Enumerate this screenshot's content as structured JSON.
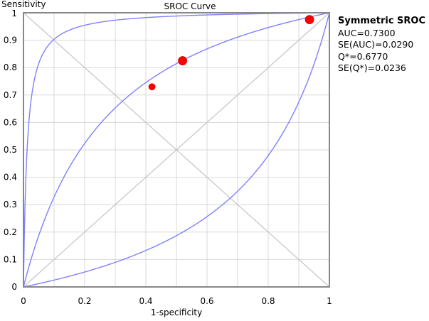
{
  "chart_data": {
    "type": "line",
    "title": "SROC Curve",
    "xlabel": "1-specificity",
    "ylabel": "Sensitivity",
    "xlim": [
      0,
      1
    ],
    "ylim": [
      0,
      1
    ],
    "grid": true,
    "x_ticks": [
      "0",
      "0.2",
      "0.4",
      "0.6",
      "0.8",
      "1"
    ],
    "y_ticks": [
      "0",
      "0.1",
      "0.2",
      "0.3",
      "0.4",
      "0.5",
      "0.6",
      "0.7",
      "0.8",
      "0.9",
      "1"
    ],
    "series": [
      {
        "name": "SROC fitted",
        "model": "logit(TPR)=a+logit(FPR)",
        "a": 1.48
      },
      {
        "name": "SROC upper",
        "model": "logit(TPR)=a+logit(FPR)",
        "a": 4.43
      },
      {
        "name": "SROC lower",
        "model": "logit(TPR)=a+logit(FPR)",
        "a": -1.47
      }
    ],
    "reference_lines": [
      "y=x",
      "y=1-x"
    ],
    "points": [
      {
        "x": 0.42,
        "y": 0.73,
        "size": "small"
      },
      {
        "x": 0.52,
        "y": 0.825,
        "size": "large"
      },
      {
        "x": 0.935,
        "y": 0.975,
        "size": "large"
      }
    ],
    "colors": {
      "curve": "#8080ff",
      "point": "#ff0000",
      "grid": "#d8d8d8",
      "diag": "#c8c8c8"
    },
    "legend": {
      "title": "Symmetric SROC",
      "lines": [
        "AUC=0.7300",
        "SE(AUC)=0.0290",
        "Q*=0.6770",
        "SE(Q*)=0.0236"
      ],
      "placement": "right"
    }
  }
}
